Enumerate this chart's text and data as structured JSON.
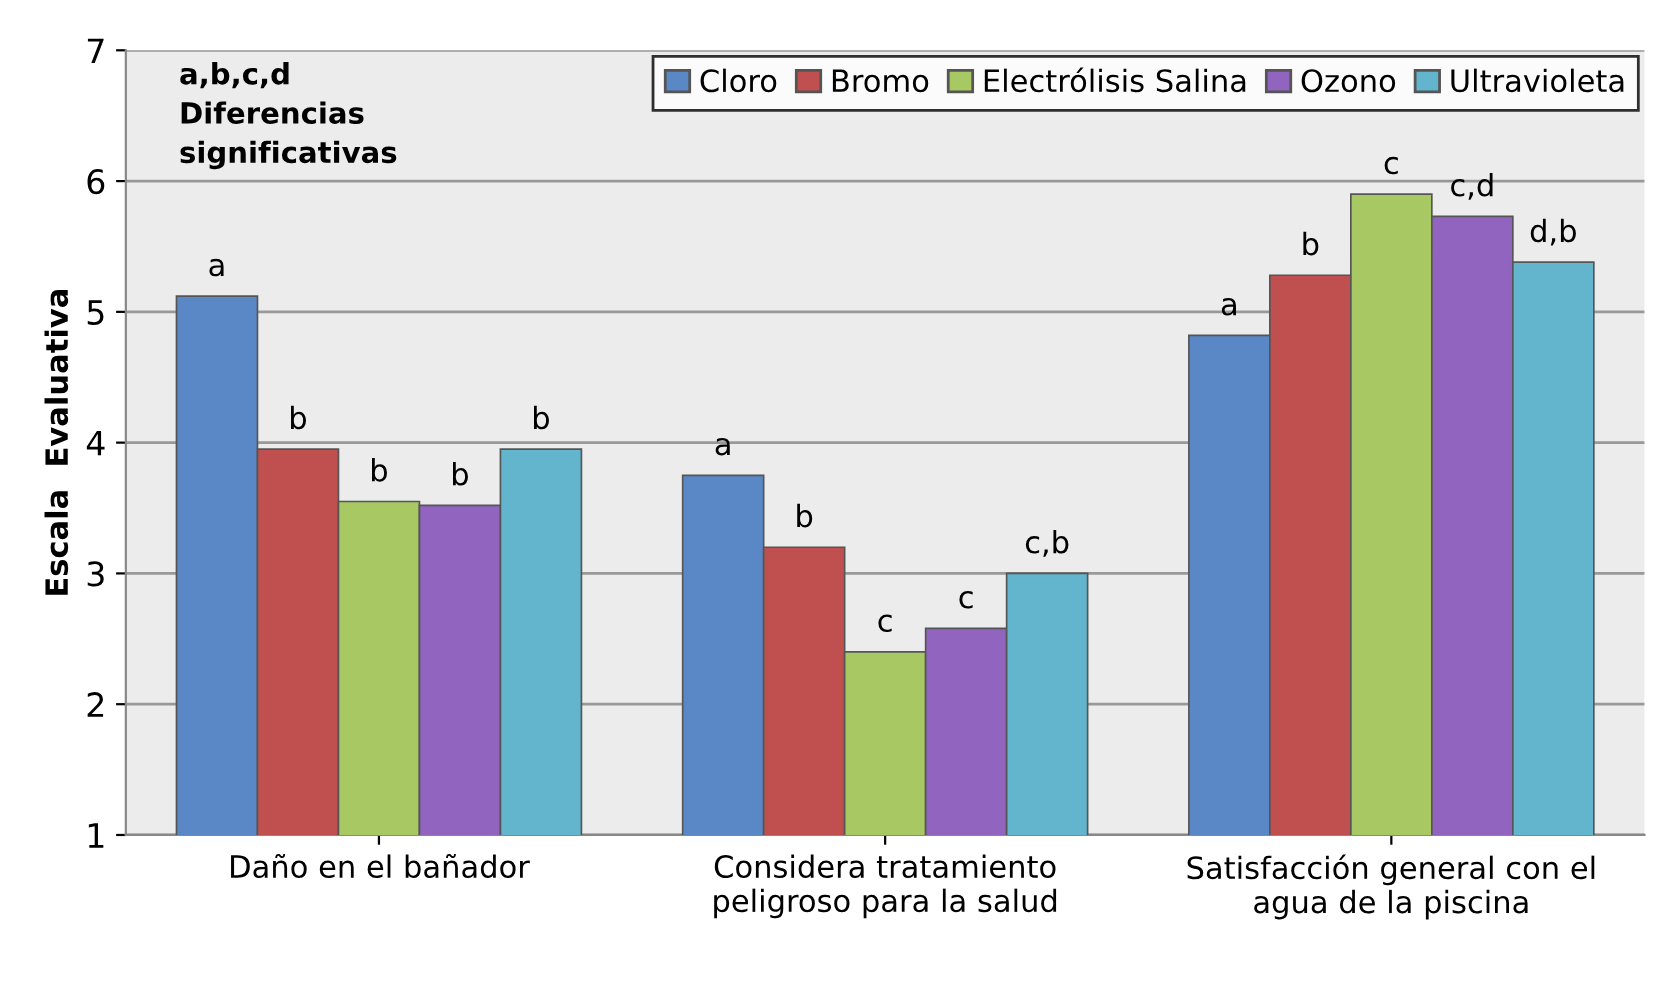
{
  "chart_data": {
    "type": "bar",
    "ylabel": "Escala  Evaluativa",
    "categories": [
      "Daño en el bañador",
      "Considera tratamiento\npeligroso para la salud",
      "Satisfacción general con el\nagua de la piscina"
    ],
    "series": [
      {
        "name": "Cloro",
        "color": "#5a87c5",
        "values": [
          5.12,
          3.75,
          4.82
        ],
        "value_labels": [
          "a",
          "a",
          "a"
        ]
      },
      {
        "name": "Bromo",
        "color": "#c0504f",
        "values": [
          3.95,
          3.2,
          5.28
        ],
        "value_labels": [
          "b",
          "b",
          "b"
        ]
      },
      {
        "name": "Electrólisis Salina",
        "color": "#a8c864",
        "values": [
          3.55,
          2.4,
          5.9
        ],
        "value_labels": [
          "b",
          "c",
          "c"
        ]
      },
      {
        "name": "Ozono",
        "color": "#9165bf",
        "values": [
          3.52,
          2.58,
          5.73
        ],
        "value_labels": [
          "b",
          "c",
          "c,d"
        ]
      },
      {
        "name": "Ultravioleta",
        "color": "#63b5cd",
        "values": [
          3.95,
          3.0,
          5.38
        ],
        "value_labels": [
          "b",
          "c,b",
          "d,b"
        ]
      }
    ],
    "ylim": [
      1,
      7
    ],
    "yticks": [
      1,
      2,
      3,
      4,
      5,
      6,
      7
    ],
    "grid": "y",
    "legend": "top right",
    "annotations": [
      "a,b,c,d\nDiferencias\nsignificativas"
    ]
  }
}
